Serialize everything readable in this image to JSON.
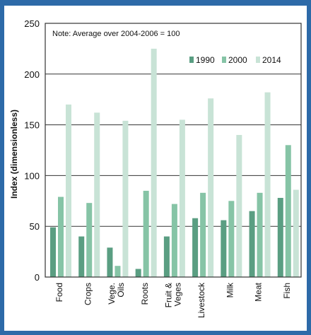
{
  "chart_data": {
    "type": "bar",
    "title": "",
    "note": "Note: Average over 2004-2006 = 100",
    "xlabel": "",
    "ylabel": "Index (dimensionless)",
    "ylim": [
      0,
      250
    ],
    "yticks": [
      0,
      50,
      100,
      150,
      200,
      250
    ],
    "grid": true,
    "legend_position": "top-right",
    "categories": [
      "Food",
      "Crops",
      "Vege. Oils",
      "Roots",
      "Fruit & Veges",
      "Livestock",
      "Milk",
      "Meat",
      "Fish"
    ],
    "category_lines": [
      [
        "Food"
      ],
      [
        "Crops"
      ],
      [
        "Vege.",
        "Oils"
      ],
      [
        "Roots"
      ],
      [
        "Fruit &",
        "Veges"
      ],
      [
        "Livestock"
      ],
      [
        "Milk"
      ],
      [
        "Meat"
      ],
      [
        "Fish"
      ]
    ],
    "series": [
      {
        "name": "1990",
        "color": "#5a9e82",
        "values": [
          49,
          40,
          29,
          8,
          40,
          58,
          56,
          65,
          78
        ]
      },
      {
        "name": "2000",
        "color": "#86c4a6",
        "values": [
          79,
          73,
          11,
          85,
          72,
          83,
          75,
          83,
          130
        ]
      },
      {
        "name": "2014",
        "color": "#c8e3d6",
        "values": [
          170,
          162,
          154,
          225,
          155,
          176,
          140,
          182,
          86
        ]
      }
    ]
  }
}
